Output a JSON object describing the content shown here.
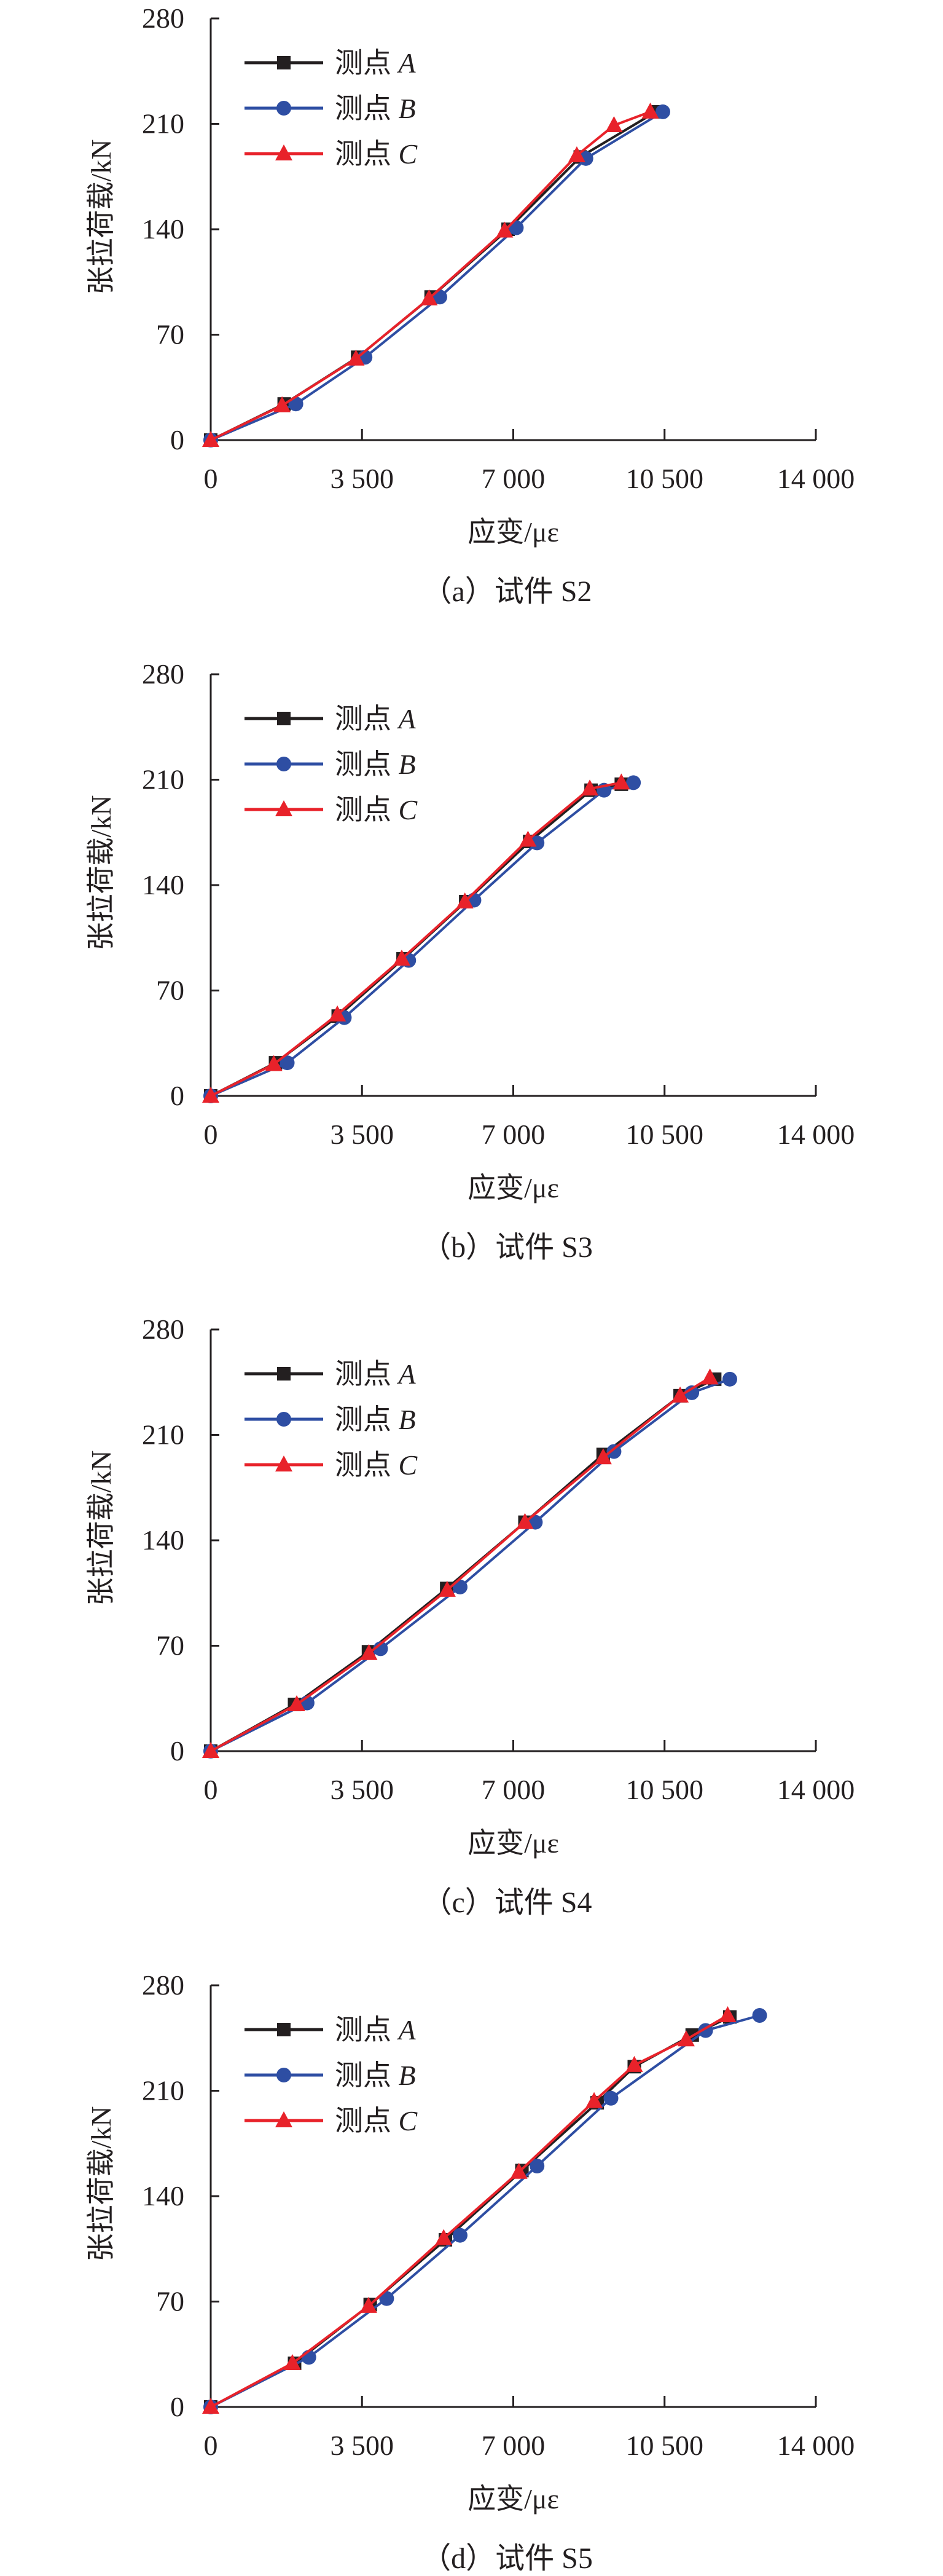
{
  "chart_data": [
    {
      "type": "line",
      "caption": "（a）试件 S2",
      "xlabel": "应变/με",
      "ylabel": "张拉荷载/kN",
      "xlim": [
        0,
        14000
      ],
      "ylim": [
        0,
        280
      ],
      "xticks": [
        0,
        3500,
        7000,
        10500,
        14000
      ],
      "xtick_labels": [
        "0",
        "3 500",
        "7 000",
        "10 500",
        "14 000"
      ],
      "yticks": [
        0,
        70,
        140,
        210,
        280
      ],
      "ytick_labels": [
        "0",
        "70",
        "140",
        "210",
        "280"
      ],
      "legend_position": "top-left",
      "series": [
        {
          "name": "测点 A",
          "color": "#231f20",
          "marker": "square",
          "x": [
            0,
            1700,
            3400,
            5100,
            6880,
            8550,
            10300
          ],
          "y": [
            0,
            24,
            55,
            95,
            140,
            188,
            218
          ]
        },
        {
          "name": "测点 B",
          "color": "#2e4ea3",
          "marker": "circle",
          "x": [
            0,
            1970,
            3570,
            5300,
            7070,
            8680,
            10460
          ],
          "y": [
            0,
            24,
            55,
            95,
            141,
            187,
            218
          ]
        },
        {
          "name": "测点 C",
          "color": "#e8222a",
          "marker": "triangle",
          "x": [
            0,
            1650,
            3360,
            5050,
            6800,
            8470,
            9330,
            10170
          ],
          "y": [
            0,
            23,
            54,
            94,
            139,
            189,
            209,
            218
          ]
        }
      ]
    },
    {
      "type": "line",
      "caption": "（b）试件 S3",
      "xlabel": "应变/με",
      "ylabel": "张拉荷载/kN",
      "xlim": [
        0,
        14000
      ],
      "ylim": [
        0,
        280
      ],
      "xticks": [
        0,
        3500,
        7000,
        10500,
        14000
      ],
      "xtick_labels": [
        "0",
        "3 500",
        "7 000",
        "10 500",
        "14 000"
      ],
      "yticks": [
        0,
        70,
        140,
        210,
        280
      ],
      "ytick_labels": [
        "0",
        "70",
        "140",
        "210",
        "280"
      ],
      "legend_position": "top-left",
      "series": [
        {
          "name": "测点 A",
          "color": "#231f20",
          "marker": "square",
          "x": [
            0,
            1500,
            2950,
            4450,
            5900,
            7380,
            8800,
            9500
          ],
          "y": [
            0,
            22,
            53,
            91,
            129,
            169,
            203,
            207
          ]
        },
        {
          "name": "测点 B",
          "color": "#2e4ea3",
          "marker": "circle",
          "x": [
            0,
            1770,
            3090,
            4580,
            6090,
            7550,
            9100,
            9780
          ],
          "y": [
            0,
            22,
            52,
            90,
            130,
            168,
            203,
            208
          ]
        },
        {
          "name": "测点 C",
          "color": "#e8222a",
          "marker": "triangle",
          "x": [
            0,
            1460,
            2930,
            4420,
            5880,
            7340,
            8770,
            9500
          ],
          "y": [
            0,
            21,
            54,
            91,
            129,
            170,
            204,
            208
          ]
        }
      ]
    },
    {
      "type": "line",
      "caption": "（c）试件 S4",
      "xlabel": "应变/με",
      "ylabel": "张拉荷载/kN",
      "xlim": [
        0,
        14000
      ],
      "ylim": [
        0,
        280
      ],
      "xticks": [
        0,
        3500,
        7000,
        10500,
        14000
      ],
      "xtick_labels": [
        "0",
        "3 500",
        "7 000",
        "10 500",
        "14 000"
      ],
      "yticks": [
        0,
        70,
        140,
        210,
        280
      ],
      "ytick_labels": [
        "0",
        "70",
        "140",
        "210",
        "280"
      ],
      "legend_position": "top-left",
      "series": [
        {
          "name": "测点 A",
          "color": "#231f20",
          "marker": "square",
          "x": [
            0,
            1940,
            3650,
            5460,
            7270,
            9080,
            10860,
            11660
          ],
          "y": [
            0,
            31,
            66,
            108,
            152,
            197,
            236,
            247
          ]
        },
        {
          "name": "测点 B",
          "color": "#2e4ea3",
          "marker": "circle",
          "x": [
            0,
            2230,
            3930,
            5770,
            7510,
            9330,
            11130,
            12010
          ],
          "y": [
            0,
            32,
            68,
            109,
            152,
            199,
            238,
            247
          ]
        },
        {
          "name": "测点 C",
          "color": "#e8222a",
          "marker": "triangle",
          "x": [
            0,
            1990,
            3660,
            5470,
            7270,
            9080,
            10860,
            11550
          ],
          "y": [
            0,
            31,
            65,
            107,
            152,
            195,
            236,
            248
          ]
        }
      ]
    },
    {
      "type": "line",
      "caption": "（d）试件 S5",
      "xlabel": "应变/με",
      "ylabel": "张拉荷载/kN",
      "xlim": [
        0,
        14000
      ],
      "ylim": [
        0,
        280
      ],
      "xticks": [
        0,
        3500,
        7000,
        10500,
        14000
      ],
      "xtick_labels": [
        "0",
        "3 500",
        "7 000",
        "10 500",
        "14 000"
      ],
      "yticks": [
        0,
        70,
        140,
        210,
        280
      ],
      "ytick_labels": [
        "0",
        "70",
        "140",
        "210",
        "280"
      ],
      "legend_position": "top-left",
      "series": [
        {
          "name": "测点 A",
          "color": "#231f20",
          "marker": "square",
          "x": [
            0,
            1940,
            3690,
            5430,
            7200,
            8940,
            9800,
            11140,
            12010
          ],
          "y": [
            0,
            29,
            68,
            111,
            157,
            202,
            226,
            247,
            259
          ]
        },
        {
          "name": "测点 B",
          "color": "#2e4ea3",
          "marker": "circle",
          "x": [
            0,
            2270,
            4070,
            5770,
            7550,
            9260,
            11450,
            12700
          ],
          "y": [
            0,
            33,
            72,
            114,
            160,
            205,
            250,
            260
          ]
        },
        {
          "name": "测点 C",
          "color": "#e8222a",
          "marker": "triangle",
          "x": [
            0,
            1890,
            3650,
            5390,
            7130,
            8870,
            9800,
            11000,
            11960
          ],
          "y": [
            0,
            29,
            67,
            112,
            156,
            203,
            227,
            244,
            260
          ]
        }
      ]
    }
  ]
}
